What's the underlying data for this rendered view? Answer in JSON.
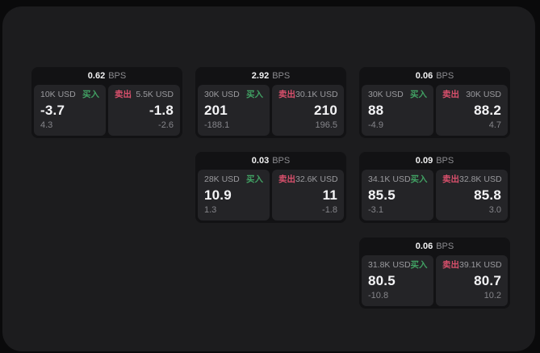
{
  "labels": {
    "bps_unit": "BPS",
    "buy": "买入",
    "sell": "卖出"
  },
  "colors": {
    "buy": "#41a063",
    "sell": "#d9506c",
    "page_bg": "#1c1c1e",
    "card_bg": "#121214",
    "tile_bg": "#242427"
  },
  "cards": [
    {
      "col": 0,
      "row": 0,
      "bps": "0.62",
      "buy": {
        "amount": "10K USD",
        "price": "-3.7",
        "delta": "4.3"
      },
      "sell": {
        "amount": "5.5K USD",
        "price": "-1.8",
        "delta": "-2.6"
      }
    },
    {
      "col": 1,
      "row": 0,
      "bps": "2.92",
      "buy": {
        "amount": "30K USD",
        "price": "201",
        "delta": "-188.1"
      },
      "sell": {
        "amount": "30.1K USD",
        "price": "210",
        "delta": "196.5"
      }
    },
    {
      "col": 2,
      "row": 0,
      "bps": "0.06",
      "buy": {
        "amount": "30K USD",
        "price": "88",
        "delta": "-4.9"
      },
      "sell": {
        "amount": "30K USD",
        "price": "88.2",
        "delta": "4.7"
      }
    },
    {
      "col": 1,
      "row": 1,
      "bps": "0.03",
      "buy": {
        "amount": "28K USD",
        "price": "10.9",
        "delta": "1.3"
      },
      "sell": {
        "amount": "32.6K USD",
        "price": "11",
        "delta": "-1.8"
      }
    },
    {
      "col": 2,
      "row": 1,
      "bps": "0.09",
      "buy": {
        "amount": "34.1K USD",
        "price": "85.5",
        "delta": "-3.1"
      },
      "sell": {
        "amount": "32.8K USD",
        "price": "85.8",
        "delta": "3.0"
      }
    },
    {
      "col": 2,
      "row": 2,
      "bps": "0.06",
      "buy": {
        "amount": "31.8K USD",
        "price": "80.5",
        "delta": "-10.8"
      },
      "sell": {
        "amount": "39.1K USD",
        "price": "80.7",
        "delta": "10.2"
      }
    }
  ]
}
